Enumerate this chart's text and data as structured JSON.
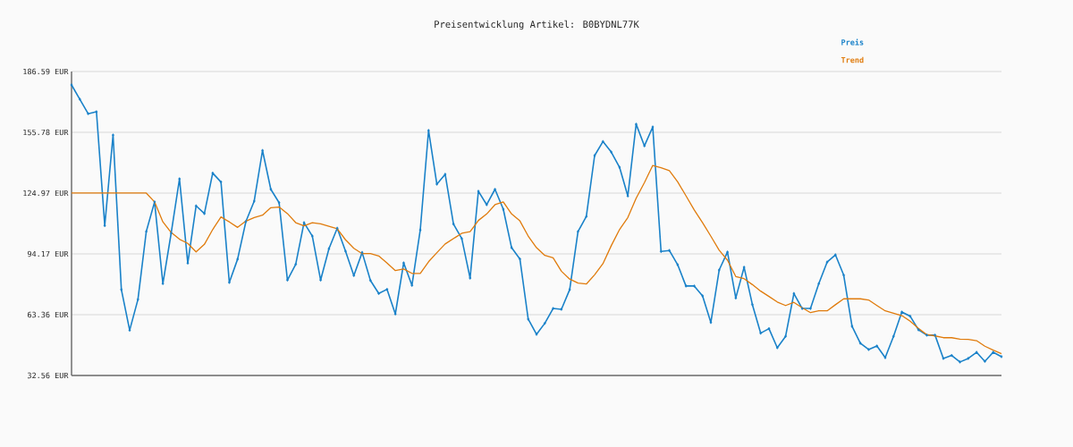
{
  "chart_data": {
    "type": "line",
    "title": "Preisentwicklung Artikel: B0BYDNL77K",
    "categories": [
      null,
      null,
      null,
      null,
      null,
      null,
      null,
      null,
      null,
      null,
      null,
      null,
      null,
      null,
      null,
      null,
      null,
      null,
      null,
      null,
      null,
      null,
      null,
      null,
      null,
      null,
      null,
      null,
      null,
      null,
      null,
      null,
      null,
      null,
      null,
      null,
      null,
      null,
      null,
      null,
      null,
      null,
      null,
      null,
      null,
      null,
      null,
      null,
      null,
      null,
      null,
      null,
      null,
      null,
      null,
      null,
      null,
      null,
      null,
      null,
      null,
      null,
      null,
      null,
      null,
      null,
      null,
      null,
      null,
      null,
      null,
      null,
      null,
      null,
      null,
      null,
      null,
      null,
      null,
      null,
      null,
      null,
      null,
      null,
      null,
      null,
      null,
      null,
      null,
      null,
      null,
      null,
      null,
      null,
      null,
      null,
      null,
      null,
      null,
      null,
      null,
      null,
      null,
      null,
      null,
      null,
      null,
      null,
      null,
      null,
      null,
      null,
      null
    ],
    "series": [
      {
        "name": "Preis",
        "color": "#1a82c9",
        "marker": "diamond",
        "values": [
          179.8,
          172.5,
          165.2,
          166.2,
          108.5,
          154.4,
          76.1,
          55.5,
          71.1,
          105.5,
          120.5,
          79.1,
          104.7,
          132.2,
          89.5,
          118.5,
          114.6,
          135.1,
          130.6,
          79.7,
          91.5,
          110.6,
          120.9,
          146.6,
          126.9,
          120.1,
          80.9,
          88.9,
          110.0,
          103.2,
          80.9,
          96.8,
          107.2,
          95.5,
          83.2,
          94.9,
          80.7,
          74.1,
          76.2,
          63.7,
          89.6,
          78.2,
          106.3,
          156.7,
          129.5,
          134.5,
          109.3,
          101.9,
          81.9,
          125.9,
          119.1,
          126.9,
          116.8,
          97.3,
          91.6,
          61.1,
          53.4,
          59.0,
          66.5,
          66.1,
          76.1,
          105.5,
          113.1,
          144.0,
          151.1,
          145.8,
          138.1,
          123.5,
          159.9,
          148.9,
          158.5,
          95.4,
          95.9,
          88.7,
          77.9,
          77.9,
          72.9,
          59.4,
          86.0,
          95.1,
          71.8,
          87.4,
          68.5,
          54.0,
          56.3,
          46.6,
          52.4,
          74.1,
          66.5,
          66.5,
          79.1,
          90.0,
          93.7,
          83.4,
          57.5,
          48.9,
          45.7,
          47.5,
          41.6,
          52.4,
          64.7,
          62.6,
          55.7,
          53.0,
          53.0,
          41.2,
          42.7,
          39.4,
          41.2,
          44.3,
          39.7,
          44.3,
          42.1
        ]
      },
      {
        "name": "Trend",
        "color": "#e07b0c",
        "marker": "none",
        "values": [
          125.0,
          125.0,
          125.0,
          125.0,
          125.0,
          125.0,
          125.0,
          125.0,
          125.0,
          125.0,
          120.5,
          110.4,
          105.0,
          101.6,
          99.5,
          95.2,
          99.0,
          106.5,
          112.9,
          110.4,
          107.6,
          110.8,
          112.6,
          113.8,
          117.6,
          117.9,
          114.6,
          110.0,
          108.4,
          110.0,
          109.4,
          108.2,
          106.9,
          101.3,
          97.0,
          94.3,
          94.3,
          93.1,
          89.5,
          85.7,
          86.5,
          84.3,
          84.3,
          90.2,
          94.8,
          99.2,
          101.9,
          104.6,
          105.4,
          111.1,
          114.4,
          119.1,
          120.5,
          114.4,
          110.9,
          103.2,
          97.3,
          93.4,
          92.2,
          85.4,
          81.4,
          79.4,
          78.9,
          83.6,
          89.2,
          98.3,
          106.5,
          112.6,
          122.4,
          130.3,
          139.0,
          137.8,
          136.4,
          130.7,
          123.6,
          116.4,
          110.0,
          103.1,
          96.0,
          91.0,
          82.7,
          81.6,
          78.6,
          75.3,
          72.6,
          69.8,
          68.0,
          69.6,
          66.9,
          64.4,
          65.3,
          65.3,
          68.4,
          71.4,
          71.4,
          71.4,
          70.8,
          68.0,
          65.3,
          64.1,
          62.9,
          60.1,
          56.4,
          53.3,
          52.6,
          51.7,
          51.7,
          51.0,
          50.8,
          50.2,
          47.4,
          45.4,
          43.6
        ]
      }
    ],
    "ylim": [
      32.56,
      186.59
    ],
    "yticks": [
      {
        "value": 32.56,
        "label": "32.56 EUR"
      },
      {
        "value": 63.36,
        "label": "63.36 EUR"
      },
      {
        "value": 94.17,
        "label": "94.17 EUR"
      },
      {
        "value": 124.97,
        "label": "124.97 EUR"
      },
      {
        "value": 155.78,
        "label": "155.78 EUR"
      },
      {
        "value": 186.59,
        "label": "186.59 EUR"
      }
    ],
    "grid": "y",
    "legend": "top right"
  }
}
